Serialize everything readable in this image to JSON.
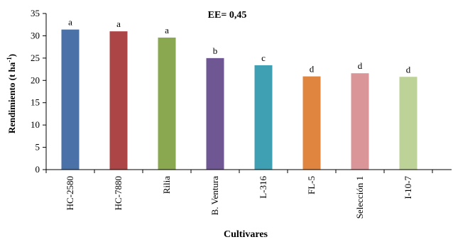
{
  "chart_data": {
    "type": "bar",
    "annotation": "EE= 0,45",
    "xlabel": "Cultivares",
    "ylabel_main": "Rendimiento (t ha",
    "ylabel_sup": "-1",
    "ylabel_tail": ")",
    "ylim": [
      0,
      35
    ],
    "yticks": [
      0,
      5,
      10,
      15,
      20,
      25,
      30,
      35
    ],
    "grid": false,
    "categories": [
      "HC-2580",
      "HC-7880",
      "Rilia",
      "B. Ventura",
      "L-316",
      "FL-5",
      "Selección 1",
      "I-10-7"
    ],
    "values": [
      31.4,
      31.0,
      29.6,
      25.0,
      23.4,
      20.9,
      21.6,
      20.8
    ],
    "letters": [
      "a",
      "a",
      "a",
      "b",
      "c",
      "d",
      "d",
      "d"
    ],
    "colors": [
      "#4a72a8",
      "#ac4545",
      "#8aa84f",
      "#6f5794",
      "#3fa0b4",
      "#e0853f",
      "#d99597",
      "#bdd296"
    ]
  }
}
